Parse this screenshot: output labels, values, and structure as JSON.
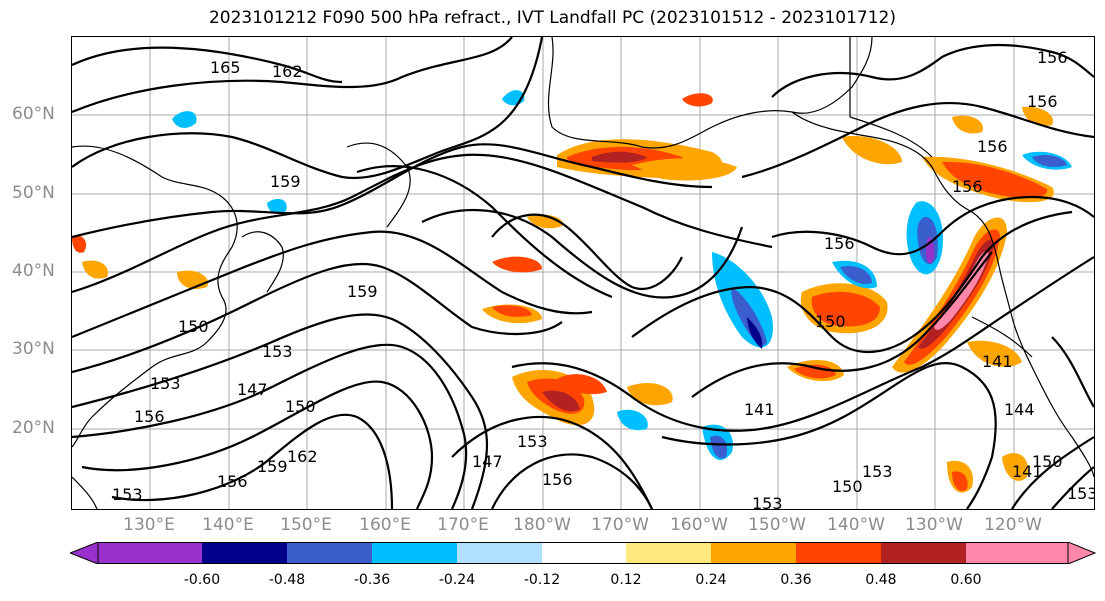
{
  "title": "2023101212 F090 500 hPa refract., IVT Landfall PC (2023101512 - 2023101712)",
  "lat_labels": [
    "60°N",
    "50°N",
    "40°N",
    "30°N",
    "20°N"
  ],
  "lon_labels": [
    "130°E",
    "140°E",
    "150°E",
    "160°E",
    "170°E",
    "180°W",
    "170°W",
    "160°W",
    "150°W",
    "140°W",
    "130°W",
    "120°W"
  ],
  "colorbar": {
    "ticks": [
      "-0.60",
      "-0.48",
      "-0.36",
      "-0.24",
      "-0.12",
      "0.12",
      "0.24",
      "0.36",
      "0.48",
      "0.60"
    ],
    "colors": [
      "#9932cc",
      "#00008b",
      "#3a5fcd",
      "#00bfff",
      "#b0e2ff",
      "#ffffff",
      "#ffe97f",
      "#ffa500",
      "#ff4500",
      "#b22222",
      "#ff88aa"
    ]
  },
  "contour_labels": [
    "165",
    "162",
    "156",
    "156",
    "156",
    "159",
    "159",
    "150",
    "153",
    "153",
    "147",
    "150",
    "156",
    "159",
    "162",
    "156",
    "153",
    "147",
    "153",
    "156",
    "156",
    "150",
    "141",
    "150",
    "153",
    "141",
    "144",
    "141",
    "150",
    "153",
    "153",
    "156"
  ],
  "colors": {
    "contour": "#000000",
    "grid": "#aaaaaa",
    "axis_text": "#8c8c8c"
  }
}
